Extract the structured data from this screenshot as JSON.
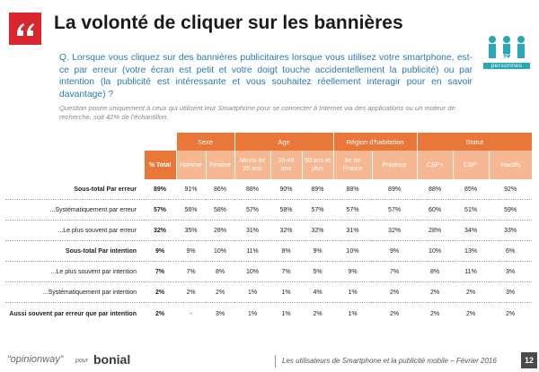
{
  "header": {
    "title": "La volonté de cliquer sur les bannières"
  },
  "question": "Q. Lorsque vous cliquez sur des bannières publicitaires lorsque vous utilisez votre smartphone, est-ce par erreur (votre écran est petit et votre doigt touche accidentellement la publicité) ou par intention (la publicité est intéressante et vous souhaitez réellement interagir pour en savoir davantage) ?",
  "note": "Question posée uniquement à ceux qui utilisent leur Smartphone pour se connecter à Internet via des applications ou un moteur de recherche, soit 42% de l’échantillon.",
  "badge": {
    "count": "422",
    "label": "personnes"
  },
  "table": {
    "total_header": "% Total",
    "groups": [
      {
        "label": "Sexe",
        "columns": [
          "Homme",
          "Femme"
        ]
      },
      {
        "label": "Age",
        "columns": [
          "Moins de 35 ans",
          "35-49 ans",
          "50 ans et plus"
        ]
      },
      {
        "label": "Région d'habitation",
        "columns": [
          "Ile de France",
          "Province"
        ]
      },
      {
        "label": "Statut",
        "columns": [
          "CSP+",
          "CSP-",
          "Inactifs"
        ]
      }
    ],
    "rows": [
      {
        "label": "Sous-total Par erreur",
        "cells": [
          "89%",
          "91%",
          "86%",
          "88%",
          "90%",
          "89%",
          "88%",
          "89%",
          "88%",
          "85%",
          "92%"
        ]
      },
      {
        "label": "...Systématiquement par erreur",
        "cells": [
          "57%",
          "56%",
          "58%",
          "57%",
          "58%",
          "57%",
          "57%",
          "57%",
          "60%",
          "51%",
          "59%"
        ]
      },
      {
        "label": "...Le plus souvent par erreur",
        "cells": [
          "32%",
          "35%",
          "28%",
          "31%",
          "32%",
          "32%",
          "31%",
          "32%",
          "28%",
          "34%",
          "33%"
        ]
      },
      {
        "label": "Sous-total Par intention",
        "cells": [
          "9%",
          "9%",
          "10%",
          "11%",
          "8%",
          "9%",
          "10%",
          "9%",
          "10%",
          "13%",
          "6%"
        ]
      },
      {
        "label": "...Le plus souvent par intention",
        "cells": [
          "7%",
          "7%",
          "8%",
          "10%",
          "7%",
          "5%",
          "9%",
          "7%",
          "8%",
          "11%",
          "3%"
        ]
      },
      {
        "label": "...Systématiquement par intention",
        "cells": [
          "2%",
          "2%",
          "2%",
          "1%",
          "1%",
          "4%",
          "1%",
          "2%",
          "2%",
          "2%",
          "3%"
        ]
      },
      {
        "label": "Aussi souvent par erreur que par intention",
        "cells": [
          "2%",
          "-",
          "3%",
          "1%",
          "1%",
          "2%",
          "1%",
          "2%",
          "2%",
          "2%",
          "2%"
        ]
      }
    ]
  },
  "footer": {
    "brand": "“opinionway”",
    "pour": "pour",
    "client": "bonial",
    "caption": "Les utilisateurs de Smartphone et la publicité mobile – Février 2016",
    "page": "12"
  }
}
